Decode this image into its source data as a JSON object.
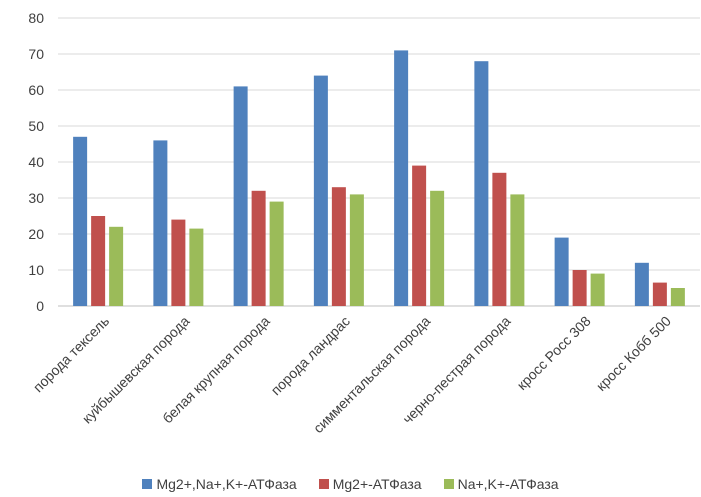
{
  "chart_data": {
    "type": "bar",
    "categories": [
      "порода тексель",
      "куйбышевская порода",
      "белая крупная порода",
      "порода ландрас",
      "симментальская порода",
      "черно-пестрая порода",
      "кросс Росс 308",
      "кросс Кобб 500"
    ],
    "series": [
      {
        "name": "Mg2+,Na+,K+-АТФаза",
        "color": "#4f81bd",
        "values": [
          47,
          46,
          61,
          64,
          71,
          68,
          19,
          12
        ]
      },
      {
        "name": "Mg2+-АТФаза",
        "color": "#c0504d",
        "values": [
          25,
          24,
          32,
          33,
          39,
          37,
          10,
          6.5
        ]
      },
      {
        "name": "Na+,K+-АТФаза",
        "color": "#9bbb59",
        "values": [
          22,
          21.5,
          29,
          31,
          32,
          31,
          9,
          5
        ]
      }
    ],
    "yticks": [
      "0",
      "10",
      "20",
      "30",
      "40",
      "50",
      "60",
      "70",
      "80"
    ],
    "ylim": [
      0,
      80
    ],
    "grid": true,
    "legend_position": "bottom"
  }
}
